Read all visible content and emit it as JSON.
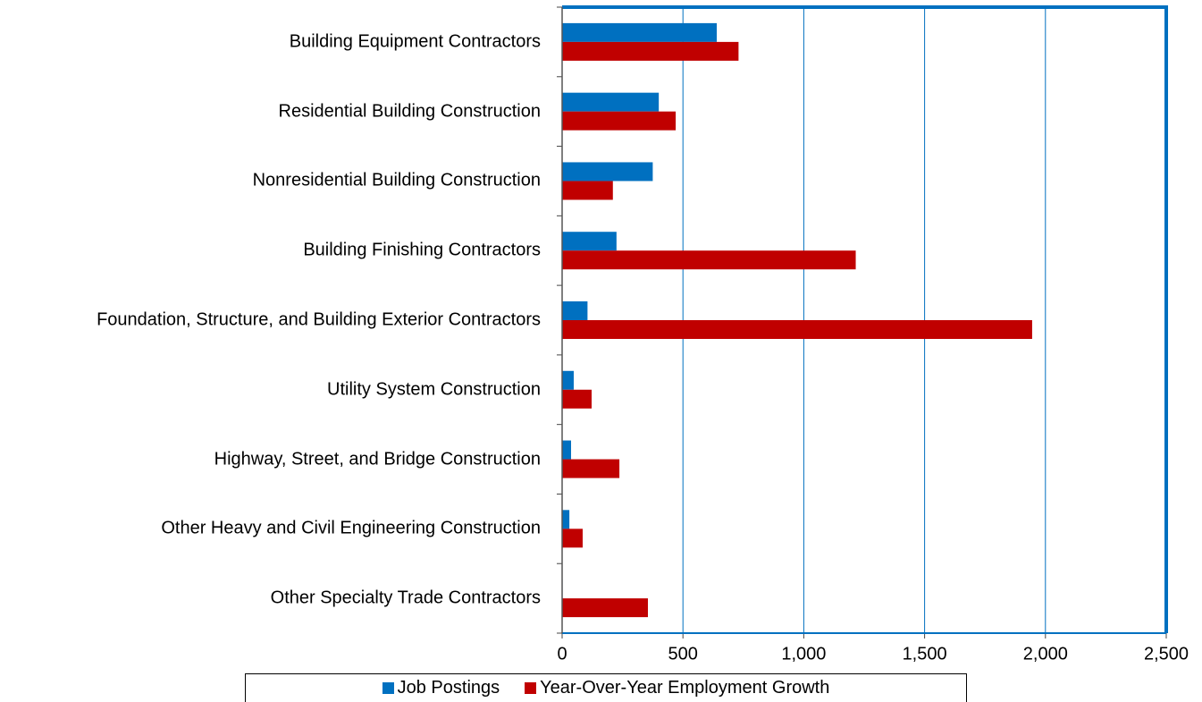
{
  "chart_data": {
    "type": "bar",
    "orientation": "horizontal",
    "categories": [
      "Building Equipment Contractors",
      "Residential Building Construction",
      "Nonresidential Building Construction",
      "Building Finishing Contractors",
      "Foundation, Structure, and Building Exterior Contractors",
      "Utility System Construction",
      "Highway, Street, and Bridge Construction",
      "Other Heavy and Civil Engineering Construction",
      "Other Specialty Trade Contractors"
    ],
    "series": [
      {
        "name": "Job Postings",
        "color": "#0070c0",
        "values": [
          640,
          400,
          375,
          225,
          105,
          48,
          37,
          30,
          2
        ]
      },
      {
        "name": "Year-Over-Year Employment Growth",
        "color": "#c00000",
        "values": [
          730,
          470,
          210,
          1215,
          1945,
          122,
          237,
          85,
          355
        ]
      }
    ],
    "xlim": [
      0,
      2500
    ],
    "xticks": [
      0,
      500,
      {
        "value": 1000,
        "label": "1,000"
      },
      {
        "value": 1500,
        "label": "1,500"
      },
      {
        "value": 2000,
        "label": "2,000"
      },
      {
        "value": 2500,
        "label": "2,500"
      }
    ],
    "grid": true,
    "legend": "bottom"
  }
}
